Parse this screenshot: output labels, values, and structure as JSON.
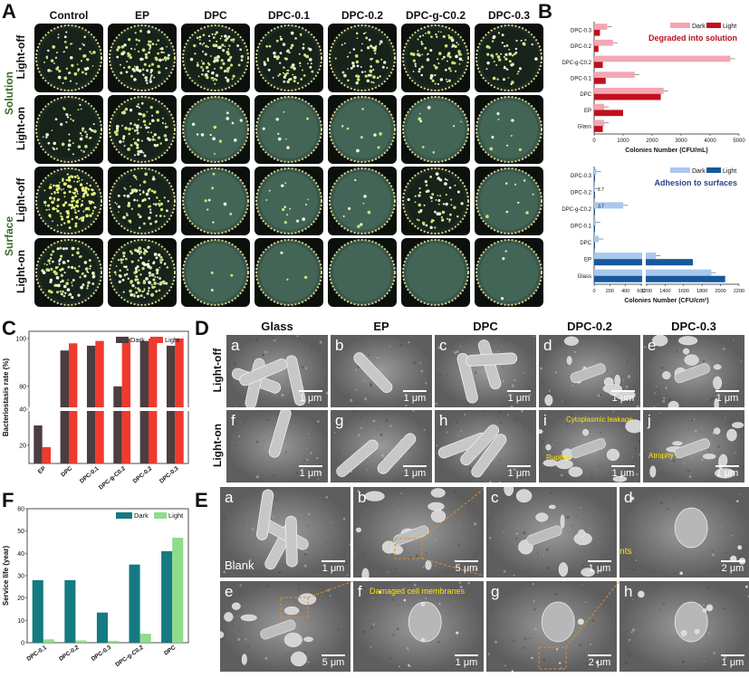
{
  "panel_labels": {
    "A": "A",
    "B": "B",
    "C": "C",
    "D": "D",
    "E": "E",
    "F": "F"
  },
  "panelA": {
    "columns": [
      "Control",
      "EP",
      "DPC",
      "DPC-0.1",
      "DPC-0.2",
      "DPC-g-C0.2",
      "DPC-0.3"
    ],
    "groups": [
      "Solution",
      "Surface"
    ],
    "rows": [
      "Light-off",
      "Light-on",
      "Light-off",
      "Light-on"
    ],
    "colony_density": [
      [
        0.35,
        0.55,
        0.6,
        0.45,
        0.4,
        0.5,
        0.35
      ],
      [
        0.3,
        0.55,
        0.08,
        0.05,
        0.05,
        0.05,
        0.05
      ],
      [
        0.9,
        0.5,
        0.05,
        0.08,
        0.05,
        0.4,
        0.05
      ],
      [
        0.6,
        0.8,
        0.02,
        0.02,
        0.0,
        0.0,
        0.02
      ]
    ]
  },
  "panelD": {
    "columns": [
      "Glass",
      "EP",
      "DPC",
      "DPC-0.2",
      "DPC-0.3"
    ],
    "rows": [
      "Light-off",
      "Light-on"
    ],
    "tiles": [
      [
        "a",
        "b",
        "c",
        "d",
        "e"
      ],
      [
        "f",
        "g",
        "h",
        "i",
        "j"
      ]
    ],
    "scale": "1 μm",
    "annotations": {
      "leakage": "Cytoplasmic leakage",
      "rupture": "Rupture",
      "atrophy": "Atrophy"
    }
  },
  "panelE": {
    "tiles": [
      {
        "letter": "a",
        "scale": "1 μm",
        "extra": "Blank"
      },
      {
        "letter": "b",
        "scale": "5 μm"
      },
      {
        "letter": "c",
        "scale": "1 μm"
      },
      {
        "letter": "d",
        "scale": "2 μm"
      },
      {
        "letter": "e",
        "scale": "5 μm"
      },
      {
        "letter": "f",
        "scale": "1 μm"
      },
      {
        "letter": "g",
        "scale": "2 μm"
      },
      {
        "letter": "h",
        "scale": "1 μm"
      }
    ],
    "annotations": {
      "contents": "Bacterial contents",
      "membranes": "Damaged cell membranes"
    }
  },
  "colors": {
    "dark_red": "#f4a6b4",
    "light_red": "#c0101e",
    "dark_blue": "#a9c8ee",
    "light_blue": "#17589c",
    "c_dark": "#4a3e40",
    "c_light": "#f03a2e",
    "f_dark": "#157a82",
    "f_light": "#8fdc8a"
  },
  "chart_data": [
    {
      "type": "bar",
      "orientation": "horizontal",
      "panel": "B-top",
      "title": "Degraded into solution",
      "categories": [
        "DPC-0.3",
        "DPC-0.2",
        "DPC-g-C0.2",
        "DPC-0.1",
        "DPC",
        "EP",
        "Glass"
      ],
      "series": [
        {
          "name": "Dark",
          "values": [
            450,
            650,
            4700,
            1400,
            2400,
            350,
            350
          ]
        },
        {
          "name": "Light",
          "values": [
            200,
            150,
            300,
            400,
            2300,
            1000,
            300
          ]
        }
      ],
      "xlabel": "Colonies Number (CFU/mL)",
      "xticks": [
        "0",
        "1000",
        "2000",
        "3000",
        "4000",
        "5000"
      ],
      "xlim": [
        0,
        5000
      ]
    },
    {
      "type": "bar",
      "orientation": "horizontal",
      "panel": "B-bottom",
      "title": "Adhesion to surfaces",
      "categories": [
        "DPC-0.3",
        "DPC-0.2",
        "DPC-g-C0.2",
        "DPC-0.1",
        "DPC",
        "EP",
        "Glass"
      ],
      "series": [
        {
          "name": "Dark",
          "values": [
            30,
            10,
            370,
            20,
            60,
            1300,
            1900
          ]
        },
        {
          "name": "Light",
          "values": [
            10,
            5,
            8,
            5,
            10,
            1700,
            2050
          ]
        }
      ],
      "small_labels": [
        "",
        "2.7",
        "3.7",
        "",
        "",
        "",
        ""
      ],
      "xlabel": "Colonies Number (CFU/cm²)",
      "xticks": [
        "0",
        "200",
        "400",
        "600",
        "1200",
        "1400",
        "1600",
        "1800",
        "2000",
        "2200"
      ],
      "axis_break": true
    },
    {
      "type": "bar",
      "panel": "C",
      "categories": [
        "EP",
        "DPC",
        "DPC-0.1",
        "DPC-g-C0.2",
        "DPC-0.2",
        "DPC-0.3"
      ],
      "series": [
        {
          "name": "Dark",
          "values": [
            31,
            95,
            97,
            80,
            99,
            97
          ]
        },
        {
          "name": "Light",
          "values": [
            19,
            98,
            99,
            100,
            100,
            100
          ]
        }
      ],
      "ylabel": "Bacteriostasis rate (%)",
      "yticks": [
        "20",
        "40",
        "80",
        "100"
      ],
      "axis_break": true
    },
    {
      "type": "bar",
      "panel": "F",
      "categories": [
        "DPC-0.1",
        "DPC-0.2",
        "DPC-0.3",
        "DPC-g-C0.2",
        "DPC"
      ],
      "series": [
        {
          "name": "Dark",
          "values": [
            28,
            28,
            13.5,
            35,
            41
          ]
        },
        {
          "name": "Light",
          "values": [
            1.5,
            1,
            0.8,
            4,
            47
          ]
        }
      ],
      "ylabel": "Service life (year)",
      "yticks": [
        "0",
        "10",
        "20",
        "30",
        "40",
        "50",
        "60"
      ],
      "ylim": [
        0,
        60
      ]
    }
  ]
}
